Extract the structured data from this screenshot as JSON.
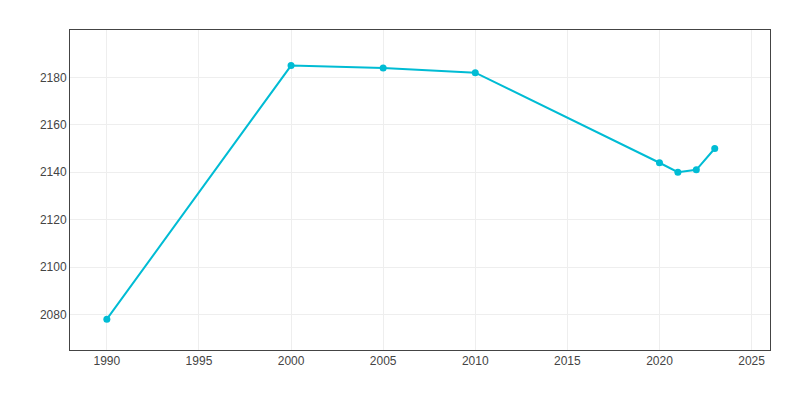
{
  "chart_data": {
    "type": "line",
    "x": [
      1990,
      2000,
      2005,
      2010,
      2020,
      2021,
      2022,
      2023
    ],
    "values": [
      2078,
      2185,
      2184,
      2182,
      2144,
      2140,
      2141,
      2150
    ],
    "color": "#00BCD4",
    "marker": "circle",
    "xlim": [
      1988,
      2026
    ],
    "ylim": [
      2065,
      2200
    ],
    "xticks": [
      1990,
      1995,
      2000,
      2005,
      2010,
      2015,
      2020,
      2025
    ],
    "yticks": [
      2080,
      2100,
      2120,
      2140,
      2160,
      2180
    ],
    "grid": true
  }
}
